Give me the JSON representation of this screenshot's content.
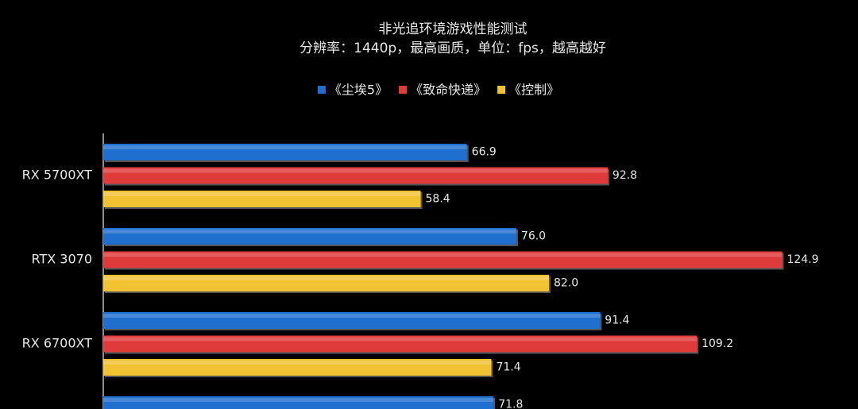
{
  "chart_data": {
    "type": "hbar",
    "title": "非光追环境游戏性能测试",
    "subtitle": "分辨率：1440p，最高画质，单位：fps，越高越好",
    "categories": [
      "RX 5700XT",
      "RTX 3070",
      "RX 6700XT",
      null
    ],
    "series": [
      {
        "name": "《尘埃5》",
        "color": "#1f6fcf",
        "values": [
          66.9,
          76.0,
          91.4,
          71.8
        ],
        "value_labels": [
          "66.9",
          "76.0",
          "91.4",
          "71.8"
        ]
      },
      {
        "name": "《致命快递》",
        "color": "#e03b3b",
        "values": [
          92.8,
          124.9,
          109.2,
          null
        ],
        "value_labels": [
          "92.8",
          "124.9",
          "109.2",
          null
        ]
      },
      {
        "name": "《控制》",
        "color": "#f1c232",
        "values": [
          58.4,
          82.0,
          71.4,
          null
        ],
        "value_labels": [
          "58.4",
          "82.0",
          "71.4",
          null
        ]
      }
    ],
    "xlim": [
      0,
      126
    ]
  }
}
